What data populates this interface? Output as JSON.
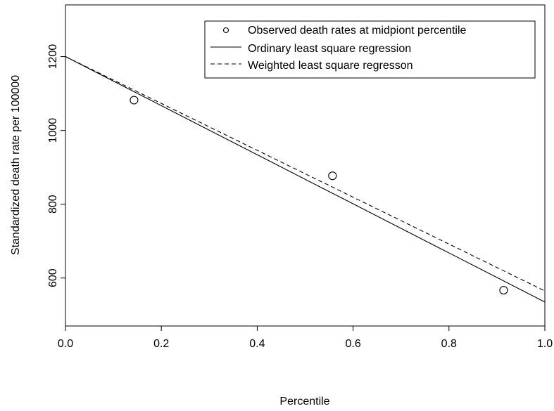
{
  "chart_data": {
    "type": "line",
    "xlabel": "Percentile",
    "ylabel": "Standardized death rate per 100000",
    "xlim": [
      0.0,
      1.0
    ],
    "ylim": [
      470,
      1340
    ],
    "x_ticks": [
      0.0,
      0.2,
      0.4,
      0.6,
      0.8,
      1.0
    ],
    "x_tick_labels": [
      "0.0",
      "0.2",
      "0.4",
      "0.6",
      "0.8",
      "1.0"
    ],
    "y_ticks": [
      600,
      800,
      1000,
      1200
    ],
    "y_tick_labels": [
      "600",
      "800",
      "1000",
      "1200"
    ],
    "grid": false,
    "legend_position": "top-right",
    "series": [
      {
        "name": "Observed death rates at midpiont percentile",
        "style": "points-open-circle",
        "x": [
          0.143,
          0.557,
          0.914
        ],
        "y": [
          1082,
          877,
          567
        ]
      },
      {
        "name": "Ordinary least square regression",
        "style": "solid-line",
        "x": [
          0.0,
          1.0
        ],
        "y": [
          1200,
          535
        ]
      },
      {
        "name": "Weighted least square regresson",
        "style": "dashed-line",
        "x": [
          0.0,
          1.0
        ],
        "y": [
          1200,
          565
        ]
      }
    ]
  }
}
